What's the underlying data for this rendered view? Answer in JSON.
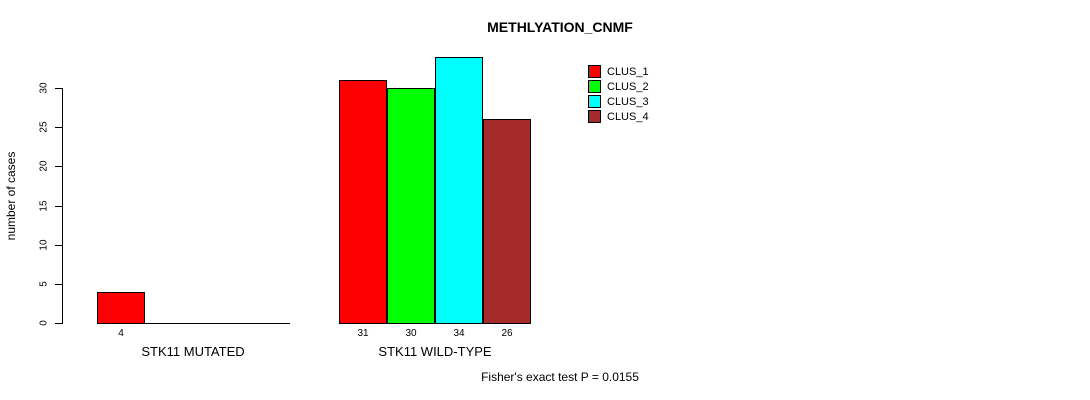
{
  "title": "METHLYATION_CNMF",
  "footer": "Fisher's exact test P = 0.0155",
  "chart_data": {
    "type": "bar",
    "title": "METHLYATION_CNMF",
    "subtitle": "",
    "xlabel": "",
    "ylabel": "number of cases",
    "categories": [
      "STK11 MUTATED",
      "STK11 WILD-TYPE"
    ],
    "series": [
      {
        "name": "CLUS_1",
        "color": "#ff0000",
        "values": [
          4,
          31
        ]
      },
      {
        "name": "CLUS_2",
        "color": "#00ff00",
        "values": [
          0,
          30
        ]
      },
      {
        "name": "CLUS_3",
        "color": "#00ffff",
        "values": [
          0,
          34
        ]
      },
      {
        "name": "CLUS_4",
        "color": "#a52a2a",
        "values": [
          0,
          26
        ]
      }
    ],
    "bar_value_labels": [
      [
        "4",
        "",
        "",
        ""
      ],
      [
        "31",
        "30",
        "34",
        "26"
      ]
    ],
    "yticks": [
      0,
      5,
      10,
      15,
      20,
      25,
      30
    ],
    "ylim": [
      0,
      30
    ],
    "grid": false,
    "legend_position": "top-right",
    "annotation": "Fisher's exact test P = 0.0155",
    "axis_color": "#000000",
    "background_color": "#ffffff"
  }
}
